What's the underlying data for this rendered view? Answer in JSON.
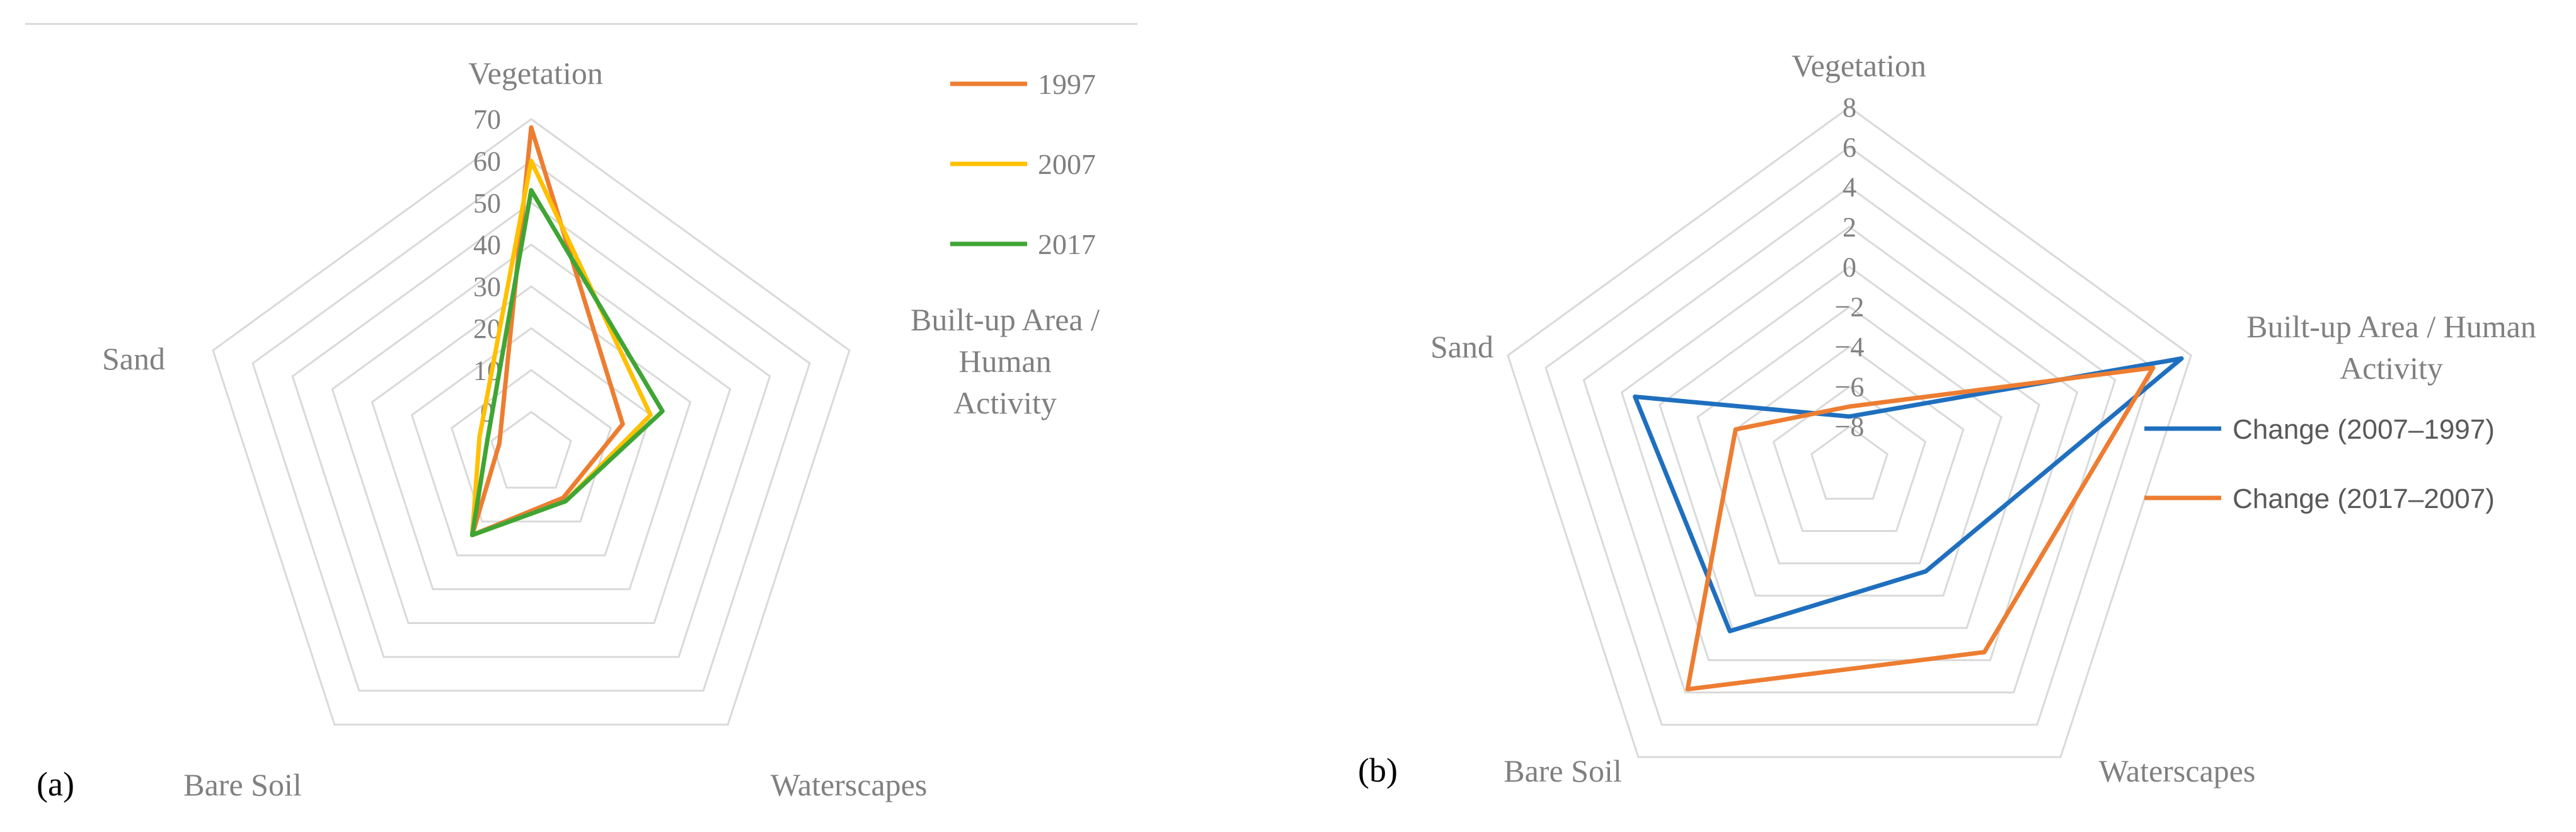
{
  "chart_data": [
    {
      "type": "radar",
      "panel_label": "(a)",
      "axes": [
        "Vegetation",
        "Built-up Area / Human Activity",
        "Waterscapes",
        "Bare Soil",
        "Sand"
      ],
      "axis_label_lines": [
        [
          "Vegetation"
        ],
        [
          "Built-up Area /",
          "Human",
          "Activity"
        ],
        [
          "Waterscapes"
        ],
        [
          "Bare Soil"
        ],
        [
          "Sand"
        ]
      ],
      "range": [
        -10,
        70
      ],
      "ticks": [
        0,
        10,
        20,
        30,
        40,
        50,
        60,
        70
      ],
      "tick_labels": [
        "0",
        "10",
        "20",
        "30",
        "40",
        "50",
        "60",
        "70"
      ],
      "grid": true,
      "legend_position": "right",
      "series": [
        {
          "name": "1997",
          "color": "#ED7D31",
          "values": [
            68,
            13,
            3,
            14,
            -2
          ]
        },
        {
          "name": "2007",
          "color": "#FFC000",
          "values": [
            60,
            20,
            4,
            14,
            3
          ]
        },
        {
          "name": "2017",
          "color": "#3FA535",
          "values": [
            53,
            23,
            4,
            14,
            1
          ]
        }
      ]
    },
    {
      "type": "radar",
      "panel_label": "(b)",
      "axes": [
        "Vegetation",
        "Built-up Area / Human Activity",
        "Waterscapes",
        "Bare Soil",
        "Sand"
      ],
      "axis_label_lines": [
        [
          "Vegetation"
        ],
        [
          "Built-up Area / Human",
          "Activity"
        ],
        [
          "Waterscapes"
        ],
        [
          "Bare Soil"
        ],
        [
          "Sand"
        ]
      ],
      "range": [
        -10,
        8
      ],
      "ticks": [
        -8,
        -6,
        -4,
        -2,
        0,
        2,
        4,
        6,
        8
      ],
      "tick_labels": [
        "−8",
        "−6",
        "−4",
        "−2",
        "0",
        "2",
        "4",
        "6",
        "8"
      ],
      "grid": true,
      "legend_position": "right",
      "series": [
        {
          "name": "Change (2007–1997)",
          "color": "#1F6FBF",
          "values": [
            -7.5,
            7.5,
            -3.5,
            0.2,
            1.3
          ]
        },
        {
          "name": "Change (2017–2007)",
          "color": "#ED7D31",
          "values": [
            -7,
            6,
            1.5,
            3.8,
            -4
          ]
        }
      ]
    }
  ]
}
